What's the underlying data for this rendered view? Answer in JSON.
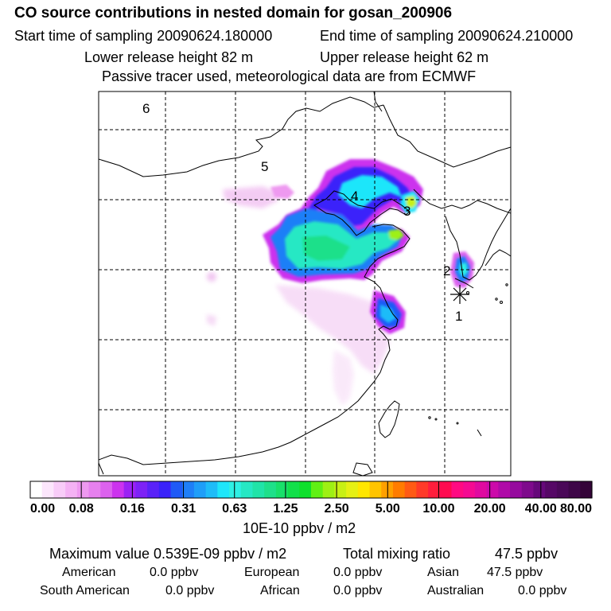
{
  "header": {
    "title": "CO  source contributions in nested domain for gosan_200906",
    "start_label": "Start time of sampling 20090624.180000",
    "end_label": "End time of sampling 20090624.210000",
    "lower_label": "Lower release height   82 m",
    "upper_label": "Upper release height   62 m",
    "note": "Passive tracer used, meteorological data are from ECMWF"
  },
  "chart_data": {
    "type": "heatmap",
    "title": "CO  source contributions in nested domain for gosan_200906",
    "region_labels": [
      "1",
      "2",
      "3",
      "4",
      "5",
      "6"
    ],
    "colorbar": {
      "ticks": [
        "0.00",
        "0.08",
        "0.16",
        "0.31",
        "0.63",
        "1.25",
        "2.50",
        "5.00",
        "10.00",
        "20.00",
        "40.00",
        "80.00"
      ],
      "unit": "10E-10 ppbv / m2",
      "colors": [
        "#ffffff",
        "#fce6fc",
        "#f8ccf8",
        "#f4b2f4",
        "#ee99f0",
        "#e680ee",
        "#dc62ee",
        "#cc33ee",
        "#9b22f4",
        "#7d22f6",
        "#5a22f8",
        "#3a22fa",
        "#1f5af7",
        "#1f7ff7",
        "#1f9ef8",
        "#1fbcf8",
        "#1fe6fa",
        "#2ef0e4",
        "#26e8c4",
        "#20e4a8",
        "#1ee08a",
        "#18e06a",
        "#12e04a",
        "#0ee02c",
        "#60f014",
        "#9ef014",
        "#c8f014",
        "#e6f014",
        "#ffe600",
        "#ffc400",
        "#ffa000",
        "#ff7c00",
        "#ff5a14",
        "#ff3a28",
        "#ff1e3c",
        "#ff0a50",
        "#ff0a82",
        "#f50a92",
        "#e00aa0",
        "#cc0aaa",
        "#b00aa8",
        "#960a9e",
        "#7e0a8c",
        "#66087a",
        "#560866",
        "#4a0858",
        "#3e0648",
        "#340438"
      ]
    }
  },
  "stats": {
    "max_label": "Maximum value  0.539E-09 ppbv / m2",
    "total_label": "Total mixing ratio",
    "total_value": "47.5 ppbv"
  },
  "sources": [
    {
      "name": "American",
      "value": "0.0 ppbv"
    },
    {
      "name": "European",
      "value": "0.0 ppbv"
    },
    {
      "name": "Asian",
      "value": "47.5 ppbv"
    },
    {
      "name": "South American",
      "value": "0.0 ppbv"
    },
    {
      "name": "African",
      "value": "0.0 ppbv"
    },
    {
      "name": "Australian",
      "value": "0.0 ppbv"
    }
  ]
}
